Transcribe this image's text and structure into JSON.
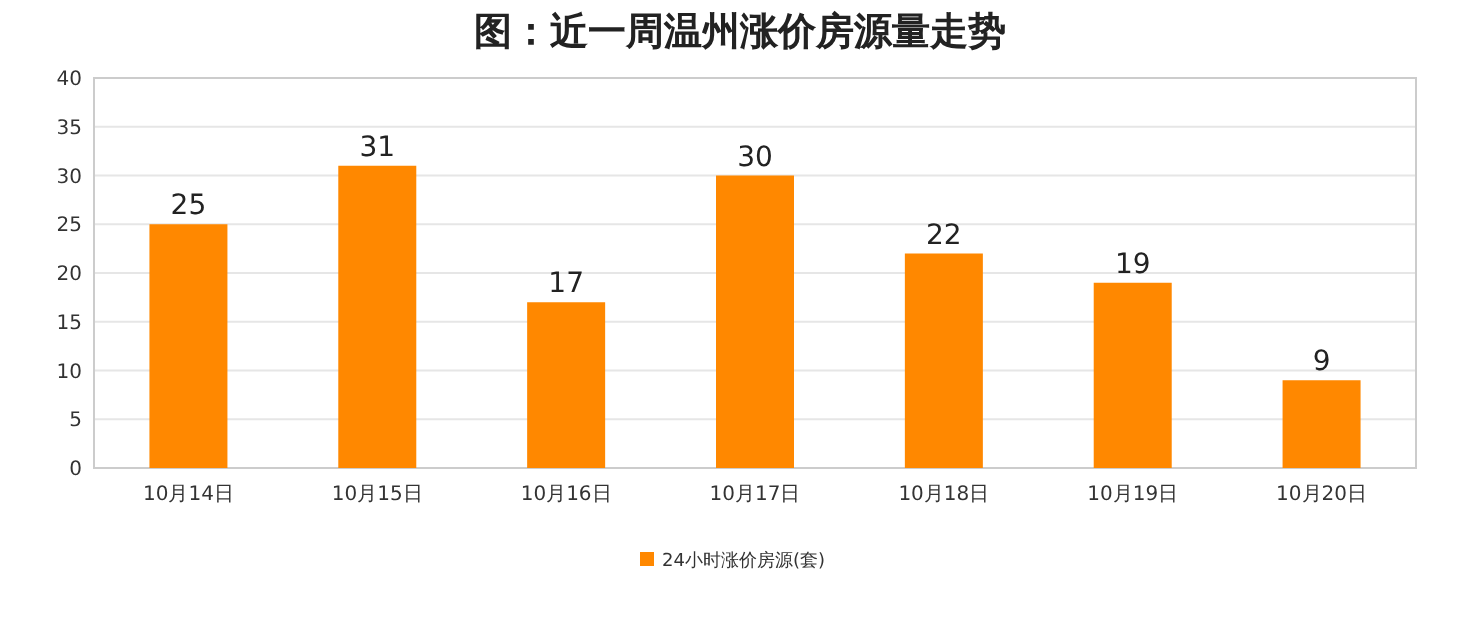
{
  "chart_data": {
    "type": "bar",
    "title": "图：近一周温州涨价房源量走势",
    "categories": [
      "10月14日",
      "10月15日",
      "10月16日",
      "10月17日",
      "10月18日",
      "10月19日",
      "10月20日"
    ],
    "series": [
      {
        "name": "24小时涨价房源(套)",
        "color": "#ff8800",
        "values": [
          25,
          31,
          17,
          30,
          22,
          19,
          9
        ]
      }
    ],
    "ylim": [
      0,
      40
    ],
    "yticks": [
      0,
      5,
      10,
      15,
      20,
      25,
      30,
      35,
      40
    ],
    "grid": "y",
    "data_labels": true,
    "legend": "bottom"
  }
}
